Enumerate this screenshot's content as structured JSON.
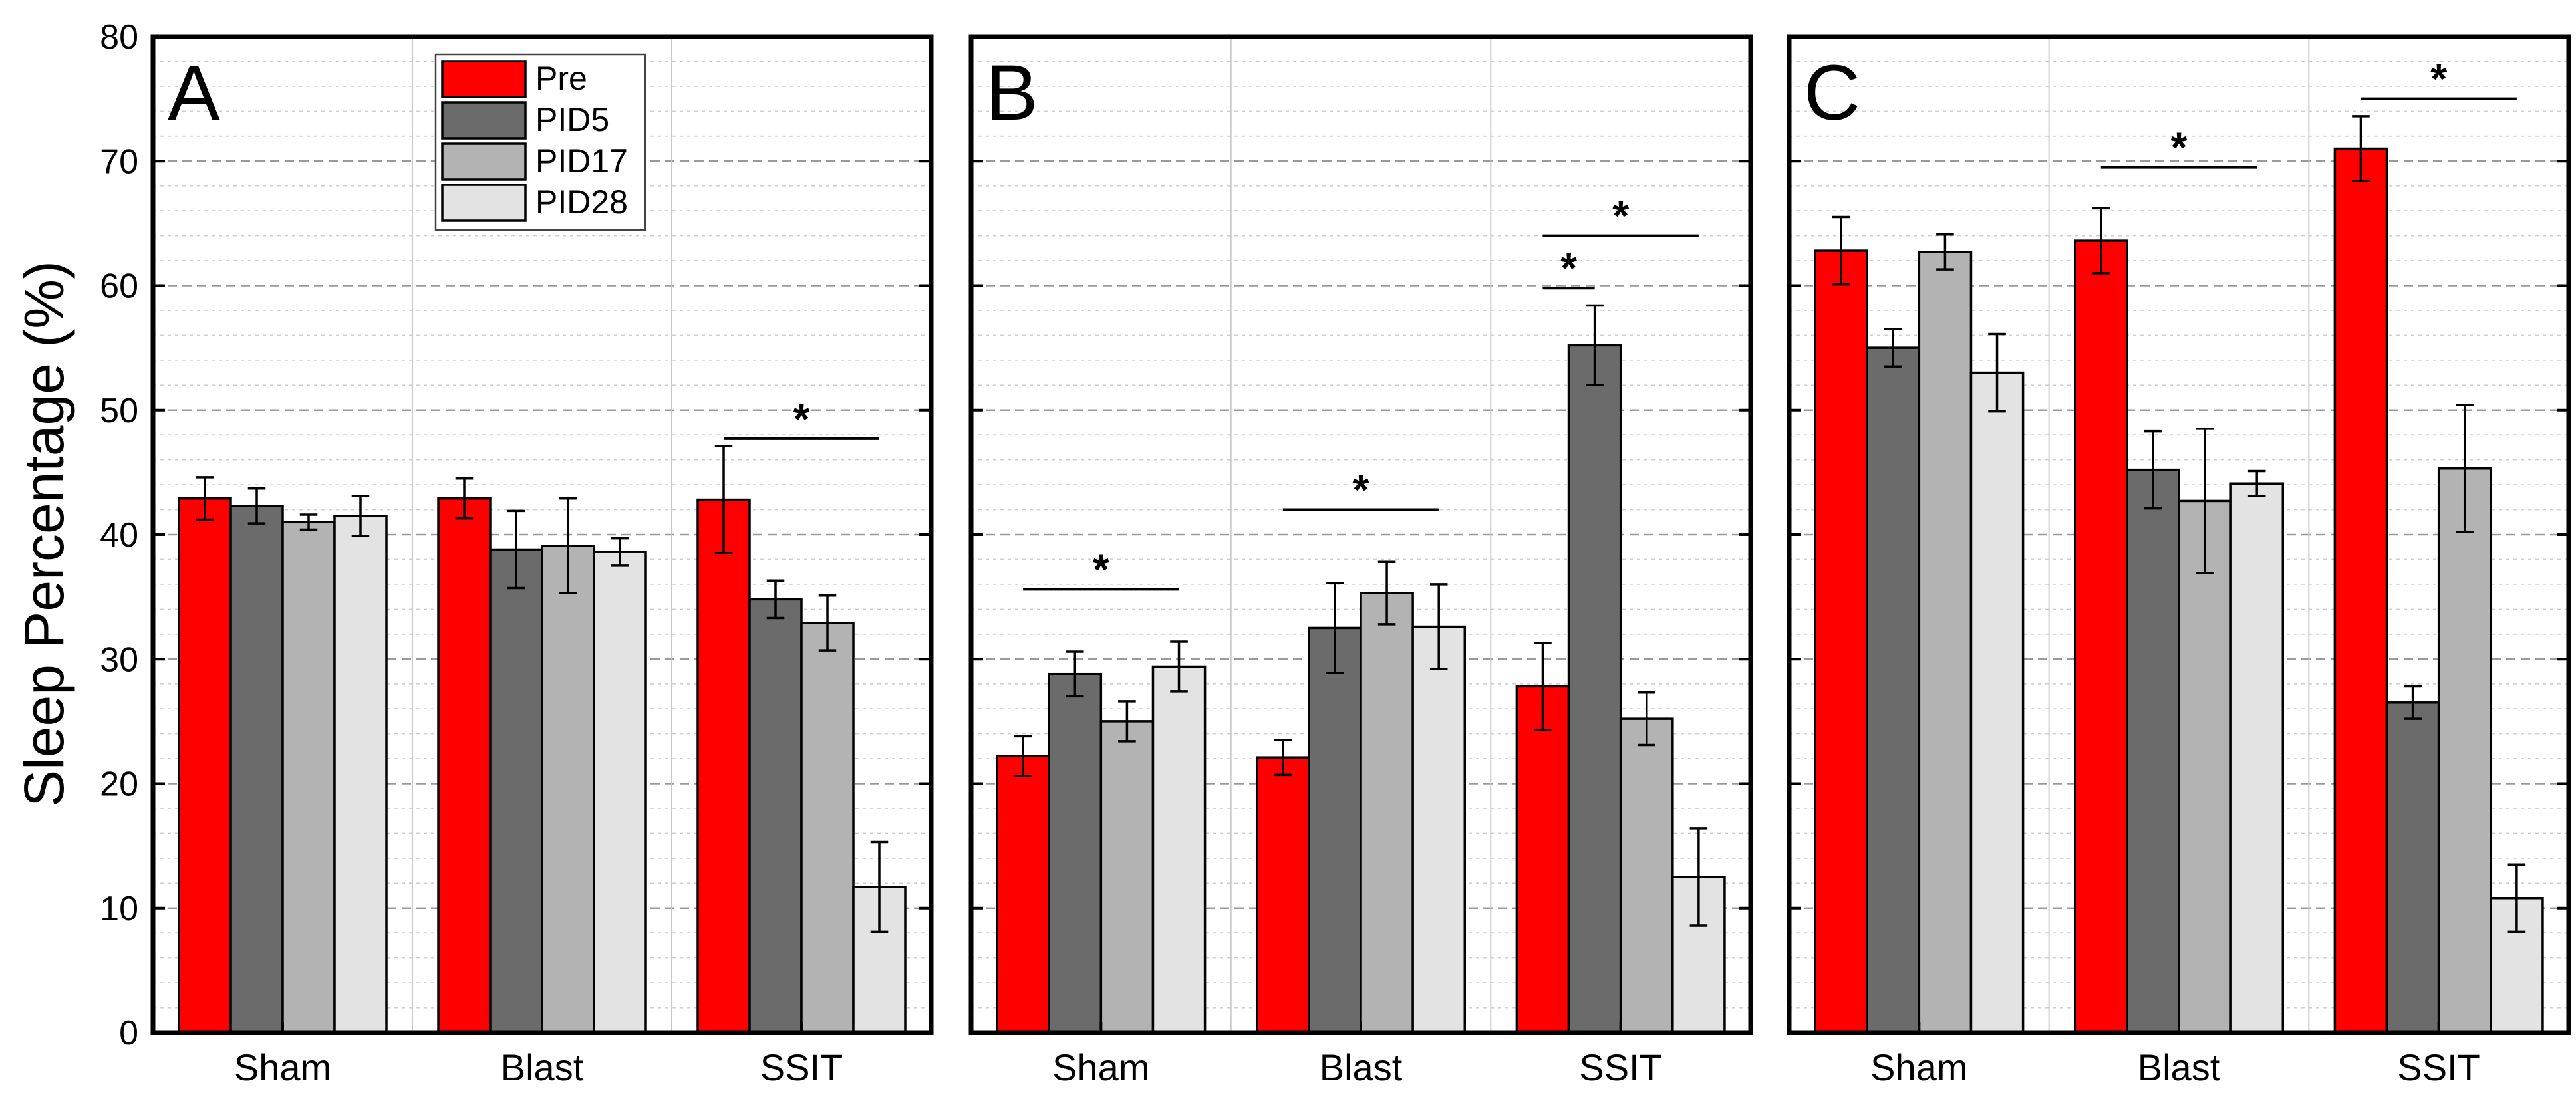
{
  "chart_data": {
    "type": "bar",
    "ylabel": "Sleep Percentage (%)",
    "ylim": [
      0,
      80
    ],
    "yticks": [
      0,
      10,
      20,
      30,
      40,
      50,
      60,
      70,
      80
    ],
    "grid": true,
    "legend": {
      "position": "top-left (panel A)",
      "entries": [
        {
          "name": "Pre",
          "color": "#ff0000"
        },
        {
          "name": "PID5",
          "color": "#6b6b6b"
        },
        {
          "name": "PID17",
          "color": "#b3b3b3"
        },
        {
          "name": "PID28",
          "color": "#e3e3e3"
        }
      ]
    },
    "categories": [
      "Sham",
      "Blast",
      "SSIT"
    ],
    "series_colors": [
      "#ff0000",
      "#6b6b6b",
      "#b3b3b3",
      "#e3e3e3"
    ],
    "panels": [
      {
        "label": "A",
        "series": [
          {
            "name": "Pre",
            "values": [
              42.9,
              42.9,
              42.8
            ],
            "errors": [
              1.7,
              1.6,
              4.3
            ]
          },
          {
            "name": "PID5",
            "values": [
              42.3,
              38.8,
              34.8
            ],
            "errors": [
              1.4,
              3.1,
              1.5
            ]
          },
          {
            "name": "PID17",
            "values": [
              41.0,
              39.1,
              32.9
            ],
            "errors": [
              0.6,
              3.8,
              2.2
            ]
          },
          {
            "name": "PID28",
            "values": [
              41.5,
              38.6,
              11.7
            ],
            "errors": [
              1.6,
              1.1,
              3.6
            ]
          }
        ],
        "significance": [
          {
            "category": 2,
            "from_series": 0,
            "to_series": 3,
            "y": 47.7,
            "label": "*"
          }
        ]
      },
      {
        "label": "B",
        "series": [
          {
            "name": "Pre",
            "values": [
              22.2,
              22.1,
              27.8
            ],
            "errors": [
              1.6,
              1.4,
              3.5
            ]
          },
          {
            "name": "PID5",
            "values": [
              28.8,
              32.5,
              55.2
            ],
            "errors": [
              1.8,
              3.6,
              3.2
            ]
          },
          {
            "name": "PID17",
            "values": [
              25.0,
              35.3,
              25.2
            ],
            "errors": [
              1.6,
              2.5,
              2.1
            ]
          },
          {
            "name": "PID28",
            "values": [
              29.4,
              32.6,
              12.5
            ],
            "errors": [
              2.0,
              3.4,
              3.9
            ]
          }
        ],
        "significance": [
          {
            "category": 0,
            "from_series": 0,
            "to_series": 3,
            "y": 35.6,
            "label": "*"
          },
          {
            "category": 1,
            "from_series": 0,
            "to_series": 3,
            "y": 42.0,
            "label": "*"
          },
          {
            "category": 2,
            "from_series": 0,
            "to_series": 1,
            "y": 59.8,
            "label": "*"
          },
          {
            "category": 2,
            "from_series": 0,
            "to_series": 3,
            "y": 64.0,
            "label": "*"
          }
        ]
      },
      {
        "label": "C",
        "series": [
          {
            "name": "Pre",
            "values": [
              62.8,
              63.6,
              71.0
            ],
            "errors": [
              2.7,
              2.6,
              2.6
            ]
          },
          {
            "name": "PID5",
            "values": [
              55.0,
              45.2,
              26.5
            ],
            "errors": [
              1.5,
              3.1,
              1.3
            ]
          },
          {
            "name": "PID17",
            "values": [
              62.7,
              42.7,
              45.3
            ],
            "errors": [
              1.4,
              5.8,
              5.1
            ]
          },
          {
            "name": "PID28",
            "values": [
              53.0,
              44.1,
              10.8
            ],
            "errors": [
              3.1,
              1.0,
              2.7
            ]
          }
        ],
        "significance": [
          {
            "category": 1,
            "from_series": 0,
            "to_series": 3,
            "y": 69.5,
            "label": "*"
          },
          {
            "category": 2,
            "from_series": 0,
            "to_series": 3,
            "y": 75.0,
            "label": "*"
          }
        ]
      }
    ]
  }
}
